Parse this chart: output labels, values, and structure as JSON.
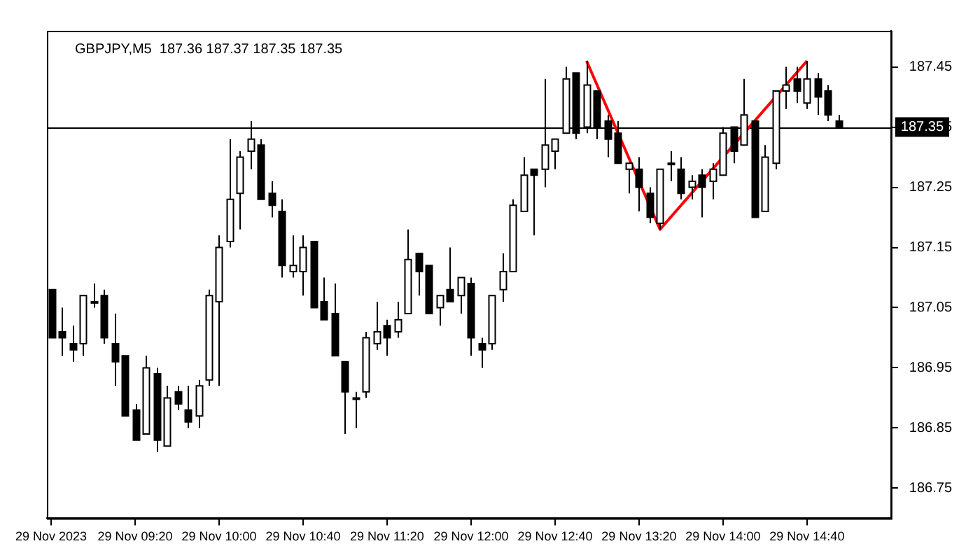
{
  "chart_data": {
    "type": "candlestick",
    "title": "GBPJPY,M5  187.36 187.37 187.35 187.35",
    "categories": [
      "29 Nov 2023",
      null,
      null,
      null,
      null,
      null,
      null,
      null,
      "29 Nov 09:20",
      null,
      null,
      null,
      null,
      null,
      null,
      null,
      "29 Nov 10:00",
      null,
      null,
      null,
      null,
      null,
      null,
      null,
      "29 Nov 10:40",
      null,
      null,
      null,
      null,
      null,
      null,
      null,
      "29 Nov 11:20",
      null,
      null,
      null,
      null,
      null,
      null,
      null,
      "29 Nov 12:00",
      null,
      null,
      null,
      null,
      null,
      null,
      null,
      "29 Nov 12:40",
      null,
      null,
      null,
      null,
      null,
      null,
      null,
      "29 Nov 13:20",
      null,
      null,
      null,
      null,
      null,
      null,
      null,
      "29 Nov 14:00",
      null,
      null,
      null,
      null,
      null,
      null,
      null,
      "29 Nov 14:40",
      null,
      null,
      null
    ],
    "ohlc": [
      [
        187.08,
        187.08,
        187.0,
        187.0
      ],
      [
        187.01,
        187.05,
        186.97,
        187.0
      ],
      [
        186.99,
        187.02,
        186.96,
        186.98
      ],
      [
        186.99,
        187.07,
        186.97,
        187.07
      ],
      [
        187.06,
        187.09,
        187.05,
        187.06
      ],
      [
        187.07,
        187.08,
        186.99,
        187.0
      ],
      [
        186.99,
        187.04,
        186.92,
        186.96
      ],
      [
        186.97,
        186.97,
        186.87,
        186.87
      ],
      [
        186.88,
        186.89,
        186.83,
        186.83
      ],
      [
        186.84,
        186.97,
        186.84,
        186.95
      ],
      [
        186.94,
        186.95,
        186.81,
        186.83
      ],
      [
        186.82,
        186.92,
        186.82,
        186.9
      ],
      [
        186.91,
        186.92,
        186.88,
        186.89
      ],
      [
        186.88,
        186.92,
        186.85,
        186.86
      ],
      [
        186.87,
        186.93,
        186.85,
        186.92
      ],
      [
        186.93,
        187.08,
        186.92,
        187.07
      ],
      [
        187.06,
        187.17,
        186.92,
        187.15
      ],
      [
        187.16,
        187.33,
        187.15,
        187.23
      ],
      [
        187.24,
        187.31,
        187.18,
        187.3
      ],
      [
        187.31,
        187.36,
        187.28,
        187.33
      ],
      [
        187.32,
        187.33,
        187.23,
        187.23
      ],
      [
        187.24,
        187.26,
        187.2,
        187.22
      ],
      [
        187.21,
        187.23,
        187.1,
        187.12
      ],
      [
        187.11,
        187.17,
        187.1,
        187.12
      ],
      [
        187.11,
        187.17,
        187.07,
        187.15
      ],
      [
        187.16,
        187.16,
        187.05,
        187.05
      ],
      [
        187.06,
        187.1,
        187.03,
        187.03
      ],
      [
        187.04,
        187.09,
        186.97,
        186.97
      ],
      [
        186.96,
        186.96,
        186.84,
        186.91
      ],
      [
        186.9,
        186.91,
        186.85,
        186.9
      ],
      [
        186.91,
        187.01,
        186.9,
        187.0
      ],
      [
        186.99,
        187.06,
        186.98,
        187.01
      ],
      [
        187.02,
        187.03,
        186.97,
        187.0
      ],
      [
        187.01,
        187.06,
        187.0,
        187.03
      ],
      [
        187.04,
        187.18,
        187.04,
        187.13
      ],
      [
        187.14,
        187.14,
        187.07,
        187.11
      ],
      [
        187.12,
        187.12,
        187.04,
        187.04
      ],
      [
        187.05,
        187.07,
        187.02,
        187.07
      ],
      [
        187.08,
        187.15,
        187.06,
        187.06
      ],
      [
        187.07,
        187.1,
        187.04,
        187.1
      ],
      [
        187.09,
        187.1,
        186.97,
        187.0
      ],
      [
        186.99,
        187.0,
        186.95,
        186.98
      ],
      [
        186.99,
        187.07,
        186.98,
        187.07
      ],
      [
        187.08,
        187.14,
        187.06,
        187.11
      ],
      [
        187.11,
        187.23,
        187.11,
        187.22
      ],
      [
        187.21,
        187.3,
        187.21,
        187.27
      ],
      [
        187.28,
        187.28,
        187.17,
        187.27
      ],
      [
        187.28,
        187.43,
        187.25,
        187.32
      ],
      [
        187.31,
        187.33,
        187.28,
        187.33
      ],
      [
        187.34,
        187.45,
        187.34,
        187.43
      ],
      [
        187.44,
        187.44,
        187.33,
        187.34
      ],
      [
        187.35,
        187.46,
        187.34,
        187.42
      ],
      [
        187.41,
        187.41,
        187.33,
        187.35
      ],
      [
        187.36,
        187.37,
        187.3,
        187.33
      ],
      [
        187.34,
        187.36,
        187.29,
        187.29
      ],
      [
        187.28,
        187.29,
        187.24,
        187.29
      ],
      [
        187.28,
        187.3,
        187.21,
        187.25
      ],
      [
        187.24,
        187.25,
        187.19,
        187.2
      ],
      [
        187.19,
        187.28,
        187.18,
        187.28
      ],
      [
        187.29,
        187.31,
        187.26,
        187.29
      ],
      [
        187.28,
        187.3,
        187.23,
        187.24
      ],
      [
        187.25,
        187.27,
        187.23,
        187.26
      ],
      [
        187.27,
        187.28,
        187.2,
        187.25
      ],
      [
        187.26,
        187.29,
        187.23,
        187.28
      ],
      [
        187.27,
        187.35,
        187.27,
        187.34
      ],
      [
        187.35,
        187.35,
        187.29,
        187.31
      ],
      [
        187.32,
        187.43,
        187.32,
        187.37
      ],
      [
        187.36,
        187.36,
        187.2,
        187.2
      ],
      [
        187.21,
        187.32,
        187.21,
        187.3
      ],
      [
        187.29,
        187.41,
        187.28,
        187.41
      ],
      [
        187.41,
        187.45,
        187.38,
        187.42
      ],
      [
        187.43,
        187.45,
        187.39,
        187.41
      ],
      [
        187.39,
        187.46,
        187.38,
        187.43
      ],
      [
        187.43,
        187.44,
        187.37,
        187.4
      ],
      [
        187.41,
        187.42,
        187.36,
        187.37
      ],
      [
        187.36,
        187.37,
        187.35,
        187.35
      ]
    ],
    "series": [
      {
        "type": "line",
        "color": "#ff0000",
        "values": [
          null,
          null,
          null,
          null,
          null,
          null,
          null,
          null,
          null,
          null,
          null,
          null,
          null,
          null,
          null,
          null,
          null,
          null,
          null,
          null,
          null,
          null,
          null,
          null,
          null,
          null,
          null,
          null,
          null,
          null,
          null,
          null,
          null,
          null,
          null,
          null,
          null,
          null,
          null,
          null,
          null,
          null,
          null,
          null,
          null,
          null,
          null,
          null,
          null,
          null,
          null,
          187.46,
          null,
          null,
          null,
          null,
          null,
          null,
          187.18,
          null,
          null,
          null,
          null,
          null,
          null,
          null,
          null,
          null,
          null,
          null,
          null,
          null,
          187.46,
          null,
          null,
          null
        ]
      }
    ],
    "ylim": [
      186.7,
      187.51
    ],
    "yticks": [
      186.75,
      186.85,
      186.95,
      187.05,
      187.15,
      187.25,
      187.35,
      187.45
    ],
    "ref_lines": [
      {
        "axis": "y",
        "value": 187.35,
        "label": "187.35",
        "color": "#000000"
      }
    ],
    "grid": false,
    "legend": false
  }
}
